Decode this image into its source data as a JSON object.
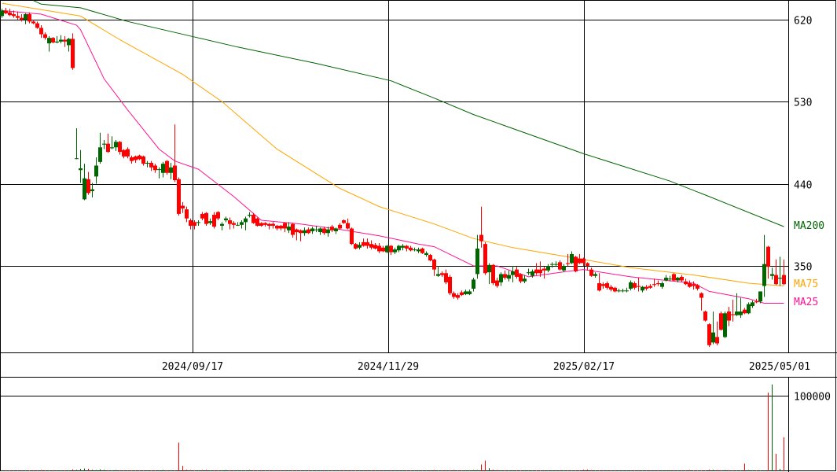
{
  "chart_data": {
    "type": "candlestick",
    "price_axis": {
      "ticks": [
        "620",
        "530",
        "440",
        "350"
      ],
      "values": [
        620,
        530,
        440,
        350
      ],
      "ylim": [
        255,
        641
      ]
    },
    "date_axis": {
      "ticks": [
        "2024/09/17",
        "2024/11/29",
        "2025/02/17",
        "2025/05/01"
      ],
      "tick_index": [
        48.5,
        98.3,
        148.1,
        197.9
      ],
      "grid_index": [
        48.5,
        98.3,
        148.1
      ]
    },
    "volume_axis": {
      "ticks": [
        "100000"
      ],
      "values": [
        100000
      ]
    },
    "colors": {
      "up": "#006600",
      "down": "#ff0000",
      "ma200": "#006400",
      "ma75": "#ffa500",
      "ma25": "#ff1493",
      "grid": "#000000"
    },
    "legend": [
      {
        "name": "MA200",
        "color": "#006400"
      },
      {
        "name": "MA75",
        "color": "#ffa500"
      },
      {
        "name": "MA25",
        "color": "#ff1493"
      }
    ],
    "candles": [
      [
        624,
        632,
        622,
        630
      ],
      [
        630,
        633,
        626,
        627
      ],
      [
        628,
        632,
        624,
        625
      ],
      [
        626,
        630,
        622,
        624
      ],
      [
        624,
        629,
        620,
        622
      ],
      [
        622,
        626,
        618,
        620
      ],
      [
        620,
        627,
        615,
        626
      ],
      [
        626,
        628,
        616,
        618
      ],
      [
        618,
        620,
        615,
        616
      ],
      [
        616,
        618,
        610,
        611
      ],
      [
        611,
        614,
        600,
        604
      ],
      [
        604,
        606,
        598,
        600
      ],
      [
        594,
        602,
        585,
        600
      ],
      [
        600,
        601,
        594,
        595
      ],
      [
        595,
        602,
        594,
        596
      ],
      [
        596,
        603,
        594,
        598
      ],
      [
        598,
        602,
        590,
        596
      ],
      [
        592,
        600,
        585,
        599
      ],
      [
        599,
        605,
        565,
        567
      ],
      [
        468,
        501,
        467,
        468
      ],
      [
        455,
        477,
        441,
        457
      ],
      [
        423,
        462,
        422,
        446
      ],
      [
        445,
        453,
        428,
        430
      ],
      [
        432,
        441,
        425,
        434
      ],
      [
        448,
        469,
        440,
        460
      ],
      [
        464,
        496,
        462,
        480
      ],
      [
        483,
        488,
        478,
        484
      ],
      [
        484,
        495,
        474,
        475
      ],
      [
        479,
        492,
        478,
        480
      ],
      [
        480,
        488,
        476,
        486
      ],
      [
        486,
        487,
        472,
        475
      ],
      [
        477,
        478,
        468,
        470
      ],
      [
        478,
        480,
        468,
        470
      ],
      [
        469,
        471,
        462,
        465
      ],
      [
        470,
        471,
        463,
        466
      ],
      [
        471,
        472,
        466,
        467
      ],
      [
        470,
        471,
        460,
        462
      ],
      [
        463,
        465,
        458,
        463
      ],
      [
        463,
        465,
        454,
        458
      ],
      [
        460,
        462,
        452,
        455
      ],
      [
        456,
        458,
        446,
        456
      ],
      [
        452,
        464,
        447,
        462
      ],
      [
        465,
        466,
        450,
        452
      ],
      [
        452,
        463,
        445,
        458
      ],
      [
        460,
        505,
        442,
        444
      ],
      [
        445,
        447,
        405,
        407
      ],
      [
        416,
        420,
        408,
        413
      ],
      [
        412,
        415,
        398,
        402
      ],
      [
        400,
        402,
        390,
        394
      ],
      [
        398,
        400,
        390,
        394
      ],
      [
        398,
        400,
        394,
        398
      ],
      [
        407,
        409,
        400,
        402
      ],
      [
        408,
        409,
        394,
        396
      ],
      [
        397,
        402,
        395,
        399
      ],
      [
        406,
        409,
        391,
        393
      ],
      [
        409,
        410,
        400,
        402
      ],
      [
        394,
        398,
        389,
        396
      ],
      [
        400,
        404,
        398,
        402
      ],
      [
        400,
        403,
        390,
        396
      ],
      [
        397,
        399,
        391,
        395
      ],
      [
        395,
        398,
        394,
        395
      ],
      [
        395,
        400,
        391,
        398
      ],
      [
        398,
        404,
        389,
        402
      ],
      [
        405,
        409,
        403,
        406
      ],
      [
        406,
        408,
        396,
        397
      ],
      [
        402,
        403,
        393,
        394
      ],
      [
        397,
        398,
        393,
        394
      ],
      [
        397,
        398,
        393,
        395
      ],
      [
        396,
        397,
        390,
        394
      ],
      [
        396,
        398,
        391,
        394
      ],
      [
        394,
        395,
        389,
        391
      ],
      [
        394,
        395,
        389,
        391
      ],
      [
        397,
        398,
        387,
        391
      ],
      [
        389,
        398,
        386,
        393
      ],
      [
        396,
        397,
        381,
        384
      ],
      [
        390,
        391,
        378,
        387
      ],
      [
        389,
        390,
        377,
        386
      ],
      [
        386,
        392,
        383,
        389
      ],
      [
        390,
        392,
        385,
        386
      ],
      [
        388,
        393,
        385,
        391
      ],
      [
        390,
        394,
        387,
        390
      ],
      [
        387,
        392,
        384,
        391
      ],
      [
        391,
        393,
        384,
        386
      ],
      [
        386,
        393,
        382,
        390
      ],
      [
        393,
        395,
        387,
        389
      ],
      [
        388,
        392,
        385,
        391
      ],
      [
        395,
        397,
        390,
        391
      ],
      [
        400,
        401,
        396,
        397
      ],
      [
        397,
        402,
        390,
        391
      ],
      [
        391,
        392,
        373,
        374
      ],
      [
        374,
        375,
        368,
        369
      ],
      [
        370,
        376,
        368,
        373
      ],
      [
        376,
        380,
        371,
        372
      ],
      [
        376,
        380,
        369,
        372
      ],
      [
        374,
        378,
        368,
        370
      ],
      [
        373,
        375,
        368,
        369
      ],
      [
        372,
        375,
        364,
        366
      ],
      [
        370,
        372,
        365,
        366
      ],
      [
        365,
        373,
        364,
        372
      ],
      [
        372,
        373,
        362,
        365
      ],
      [
        365,
        370,
        363,
        368
      ],
      [
        367,
        373,
        365,
        372
      ],
      [
        370,
        374,
        367,
        372
      ],
      [
        372,
        373,
        366,
        369
      ],
      [
        370,
        372,
        366,
        367
      ],
      [
        368,
        370,
        366,
        368
      ],
      [
        366,
        370,
        364,
        368
      ],
      [
        369,
        370,
        363,
        364
      ],
      [
        362,
        366,
        360,
        364
      ],
      [
        362,
        363,
        355,
        356
      ],
      [
        357,
        358,
        339,
        346
      ],
      [
        339,
        350,
        338,
        341
      ],
      [
        342,
        344,
        338,
        340
      ],
      [
        342,
        346,
        330,
        332
      ],
      [
        338,
        340,
        318,
        320
      ],
      [
        320,
        322,
        314,
        316
      ],
      [
        318,
        320,
        313,
        315
      ],
      [
        321,
        323,
        317,
        318
      ],
      [
        319,
        324,
        318,
        322
      ],
      [
        319,
        324,
        318,
        322
      ],
      [
        325,
        337,
        322,
        335
      ],
      [
        341,
        384,
        336,
        369
      ],
      [
        384,
        415,
        370,
        377
      ],
      [
        374,
        376,
        340,
        342
      ],
      [
        343,
        353,
        330,
        351
      ],
      [
        351,
        352,
        329,
        331
      ],
      [
        334,
        337,
        326,
        328
      ],
      [
        332,
        343,
        328,
        341
      ],
      [
        341,
        345,
        335,
        337
      ],
      [
        336,
        345,
        333,
        340
      ],
      [
        340,
        350,
        332,
        344
      ],
      [
        346,
        349,
        336,
        338
      ],
      [
        341,
        342,
        331,
        333
      ],
      [
        333,
        340,
        331,
        336
      ],
      [
        342,
        347,
        340,
        343
      ],
      [
        339,
        346,
        337,
        344
      ],
      [
        346,
        353,
        340,
        342
      ],
      [
        346,
        355,
        338,
        342
      ],
      [
        347,
        349,
        336,
        345
      ],
      [
        345,
        352,
        343,
        350
      ],
      [
        352,
        354,
        348,
        352
      ],
      [
        352,
        355,
        349,
        352
      ],
      [
        354,
        356,
        345,
        346
      ],
      [
        345,
        352,
        343,
        350
      ],
      [
        353,
        363,
        350,
        352
      ],
      [
        353,
        366,
        352,
        363
      ],
      [
        360,
        361,
        343,
        344
      ],
      [
        358,
        363,
        352,
        353
      ],
      [
        358,
        359,
        350,
        353
      ],
      [
        353,
        354,
        345,
        350
      ],
      [
        346,
        348,
        338,
        339
      ],
      [
        339,
        343,
        337,
        341
      ],
      [
        331,
        342,
        322,
        323
      ],
      [
        330,
        332,
        325,
        328
      ],
      [
        331,
        333,
        324,
        326
      ],
      [
        327,
        329,
        322,
        324
      ],
      [
        326,
        327,
        321,
        322
      ],
      [
        323,
        325,
        321,
        323
      ],
      [
        323,
        325,
        321,
        323
      ],
      [
        323,
        326,
        321,
        323
      ],
      [
        325,
        334,
        323,
        332
      ],
      [
        331,
        333,
        324,
        326
      ],
      [
        328,
        337,
        322,
        327
      ],
      [
        323,
        328,
        321,
        327
      ],
      [
        327,
        329,
        323,
        325
      ],
      [
        328,
        330,
        325,
        326
      ],
      [
        330,
        336,
        327,
        329
      ],
      [
        331,
        334,
        328,
        330
      ],
      [
        327,
        333,
        325,
        331
      ],
      [
        334,
        340,
        333,
        337
      ],
      [
        336,
        339,
        333,
        336
      ],
      [
        341,
        342,
        333,
        334
      ],
      [
        334,
        338,
        332,
        337
      ],
      [
        338,
        340,
        332,
        334
      ],
      [
        333,
        336,
        329,
        330
      ],
      [
        331,
        334,
        326,
        327
      ],
      [
        330,
        333,
        324,
        328
      ],
      [
        329,
        330,
        323,
        325
      ],
      [
        320,
        321,
        301,
        315
      ],
      [
        300,
        301,
        289,
        290
      ],
      [
        286,
        287,
        261,
        263
      ],
      [
        266,
        300,
        264,
        277
      ],
      [
        272,
        289,
        263,
        265
      ],
      [
        298,
        300,
        279,
        280
      ],
      [
        272,
        300,
        271,
        298
      ],
      [
        300,
        305,
        284,
        290
      ],
      [
        297,
        313,
        289,
        296
      ],
      [
        296,
        320,
        295,
        300
      ],
      [
        296,
        315,
        293,
        300
      ],
      [
        302,
        304,
        297,
        298
      ],
      [
        298,
        310,
        297,
        308
      ],
      [
        306,
        312,
        304,
        310
      ],
      [
        311,
        314,
        309,
        310
      ],
      [
        311,
        322,
        309,
        322
      ],
      [
        328,
        384,
        316,
        352
      ],
      [
        371,
        372,
        336,
        349
      ],
      [
        339,
        348,
        335,
        341
      ],
      [
        340,
        357,
        329,
        330
      ],
      [
        336,
        360,
        328,
        337
      ],
      [
        340,
        357,
        329,
        330
      ]
    ],
    "volume": [
      800,
      600,
      900,
      700,
      500,
      600,
      1200,
      900,
      700,
      800,
      1500,
      900,
      1100,
      800,
      700,
      1000,
      900,
      1200,
      2500,
      1800,
      3000,
      3500,
      3200,
      2000,
      1500,
      2500,
      1800,
      1200,
      1000,
      1500,
      900,
      800,
      700,
      1200,
      900,
      600,
      800,
      700,
      1100,
      900,
      800,
      1500,
      900,
      1200,
      1000,
      38000,
      7000,
      2000,
      1500,
      1200,
      900,
      1500,
      1800,
      1000,
      1200,
      1100,
      900,
      1500,
      1000,
      800,
      1300,
      1000,
      900,
      1600,
      1200,
      1000,
      800,
      700,
      1100,
      900,
      700,
      800,
      900,
      600,
      1000,
      800,
      700,
      600,
      800,
      900,
      700,
      600,
      800,
      900,
      700,
      800,
      600,
      900,
      700,
      800,
      1000,
      600,
      500,
      600,
      800,
      900,
      700,
      600,
      500,
      700,
      800,
      600,
      700,
      900,
      800,
      1200,
      900,
      700,
      800,
      600,
      1500,
      1000,
      900,
      800,
      1200,
      1500,
      900,
      1100,
      1300,
      1200,
      1500,
      1600,
      9000,
      14000,
      4000,
      2000,
      1500,
      1200,
      1000,
      900,
      800,
      1200,
      1000,
      900,
      700,
      800,
      1000,
      900,
      800,
      700,
      900,
      700,
      800,
      1000,
      900,
      1100,
      900,
      800,
      2000,
      2200,
      1600,
      1000,
      900,
      800,
      700,
      600,
      800,
      700,
      900,
      800,
      700,
      900,
      600,
      800,
      700,
      600,
      500,
      800,
      600,
      700,
      900,
      800,
      1000,
      900,
      1200,
      1500,
      1100,
      900,
      1000,
      800,
      2000,
      1800,
      1500,
      1200,
      1500,
      1300,
      1100,
      900,
      1000,
      10000,
      1500,
      1200,
      900,
      1000,
      800,
      104000,
      115000,
      23000,
      3000,
      45000
    ],
    "ma200": [
      [
        8,
        641
      ],
      [
        10,
        637
      ],
      [
        20,
        633
      ],
      [
        32,
        618
      ],
      [
        50,
        600
      ],
      [
        60,
        590
      ],
      [
        80,
        572
      ],
      [
        99,
        553
      ],
      [
        110,
        534
      ],
      [
        120,
        516
      ],
      [
        148,
        473
      ],
      [
        170,
        443
      ],
      [
        180,
        426
      ],
      [
        199,
        393
      ]
    ],
    "ma75": [
      [
        0,
        638
      ],
      [
        20,
        624
      ],
      [
        30,
        598
      ],
      [
        46,
        560
      ],
      [
        56,
        530
      ],
      [
        70,
        478
      ],
      [
        86,
        435
      ],
      [
        96,
        415
      ],
      [
        110,
        396
      ],
      [
        120,
        380
      ],
      [
        130,
        370
      ],
      [
        148,
        357
      ],
      [
        160,
        348
      ],
      [
        176,
        340
      ],
      [
        190,
        331
      ],
      [
        199,
        328
      ]
    ],
    "ma25": [
      [
        0,
        630
      ],
      [
        10,
        626
      ],
      [
        19,
        614
      ],
      [
        20,
        609
      ],
      [
        26,
        555
      ],
      [
        32,
        521
      ],
      [
        40,
        478
      ],
      [
        44,
        465
      ],
      [
        50,
        456
      ],
      [
        59,
        426
      ],
      [
        66,
        400
      ],
      [
        76,
        396
      ],
      [
        86,
        390
      ],
      [
        96,
        383
      ],
      [
        106,
        374
      ],
      [
        110,
        371
      ],
      [
        120,
        350
      ],
      [
        126,
        350
      ],
      [
        134,
        338
      ],
      [
        144,
        344
      ],
      [
        148,
        346
      ],
      [
        160,
        338
      ],
      [
        176,
        331
      ],
      [
        180,
        322
      ],
      [
        190,
        314
      ],
      [
        194,
        309
      ],
      [
        199,
        309
      ]
    ]
  }
}
